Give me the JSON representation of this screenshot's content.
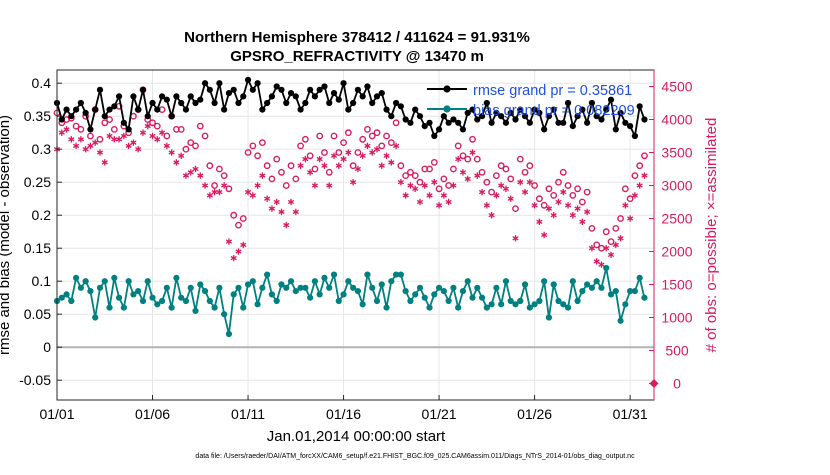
{
  "chart_data": {
    "type": "line",
    "title": "Northern Hemisphere 378412 / 411624 = 91.931%",
    "subtitle": "GPSRO_REFRACTIVITY @ 13470 m",
    "xlabel": "Jan.01,2014 00:00:00 start",
    "ylabel_left": "rmse and bias (model - observation)",
    "ylabel_right": "# of obs: o=possible; ×=assimilated",
    "footer": "data file: /Users/raeder/DAI/ATM_forcXX/CAM6_setup/f.e21.FHIST_BGC.f09_025.CAM6assim.011/Diags_NTrS_2014-01/obs_diag_output.nc",
    "x_tick_labels": [
      "01/01",
      "01/06",
      "01/11",
      "01/16",
      "01/21",
      "01/26",
      "01/31"
    ],
    "x_tick_values": [
      1,
      6,
      11,
      16,
      21,
      26,
      31
    ],
    "xlim": [
      1,
      32.25
    ],
    "ylim_left": [
      -0.08,
      0.42
    ],
    "y_left_tick_labels": [
      "-0.05",
      "0",
      "0.05",
      "0.1",
      "0.15",
      "0.2",
      "0.25",
      "0.3",
      "0.35",
      "0.4"
    ],
    "y_left_tick_values": [
      -0.05,
      0,
      0.05,
      0.1,
      0.15,
      0.2,
      0.25,
      0.3,
      0.35,
      0.4
    ],
    "ylim_right": [
      -250,
      4750
    ],
    "y_right_tick_labels": [
      "0",
      "500",
      "1000",
      "1500",
      "2000",
      "2500",
      "3000",
      "3500",
      "4000",
      "4500"
    ],
    "y_right_tick_values": [
      0,
      500,
      1000,
      1500,
      2000,
      2500,
      3000,
      3500,
      4000,
      4500
    ],
    "grid": true,
    "legend": {
      "placement": "top-right",
      "entries": [
        "rmse grand pr = 0.35861",
        "bias grand pr = 0.082209"
      ]
    },
    "colors": {
      "rmse": "#000000",
      "bias": "#008080",
      "obs": "#d81b60",
      "legend_text": "#1f4fe0",
      "zero_line": "#b3b3b3",
      "grid": "#e6e6e6"
    },
    "x": [
      1.0,
      1.25,
      1.5,
      1.75,
      2.0,
      2.25,
      2.5,
      2.75,
      3.0,
      3.25,
      3.5,
      3.75,
      4.0,
      4.25,
      4.5,
      4.75,
      5.0,
      5.25,
      5.5,
      5.75,
      6.0,
      6.25,
      6.5,
      6.75,
      7.0,
      7.25,
      7.5,
      7.75,
      8.0,
      8.25,
      8.5,
      8.75,
      9.0,
      9.25,
      9.5,
      9.75,
      10.0,
      10.25,
      10.5,
      10.75,
      11.0,
      11.25,
      11.5,
      11.75,
      12.0,
      12.25,
      12.5,
      12.75,
      13.0,
      13.25,
      13.5,
      13.75,
      14.0,
      14.25,
      14.5,
      14.75,
      15.0,
      15.25,
      15.5,
      15.75,
      16.0,
      16.25,
      16.5,
      16.75,
      17.0,
      17.25,
      17.5,
      17.75,
      18.0,
      18.25,
      18.5,
      18.75,
      19.0,
      19.25,
      19.5,
      19.75,
      20.0,
      20.25,
      20.5,
      20.75,
      21.0,
      21.25,
      21.5,
      21.75,
      22.0,
      22.25,
      22.5,
      22.75,
      23.0,
      23.25,
      23.5,
      23.75,
      24.0,
      24.25,
      24.5,
      24.75,
      25.0,
      25.25,
      25.5,
      25.75,
      26.0,
      26.25,
      26.5,
      26.75,
      27.0,
      27.25,
      27.5,
      27.75,
      28.0,
      28.25,
      28.5,
      28.75,
      29.0,
      29.25,
      29.5,
      29.75,
      30.0,
      30.25,
      30.5,
      30.75,
      31.0,
      31.25,
      31.5,
      31.75
    ],
    "series": [
      {
        "name": "rmse",
        "axis": "left",
        "marker": "filled-circle-line",
        "values": [
          0.37,
          0.345,
          0.36,
          0.35,
          0.36,
          0.37,
          0.355,
          0.33,
          0.36,
          0.39,
          0.35,
          0.36,
          0.365,
          0.38,
          0.34,
          0.33,
          0.38,
          0.36,
          0.39,
          0.35,
          0.37,
          0.36,
          0.38,
          0.375,
          0.35,
          0.38,
          0.37,
          0.36,
          0.38,
          0.37,
          0.375,
          0.4,
          0.39,
          0.37,
          0.4,
          0.36,
          0.385,
          0.39,
          0.37,
          0.38,
          0.405,
          0.39,
          0.4,
          0.36,
          0.37,
          0.38,
          0.395,
          0.39,
          0.37,
          0.385,
          0.38,
          0.36,
          0.37,
          0.39,
          0.38,
          0.39,
          0.395,
          0.37,
          0.385,
          0.375,
          0.4,
          0.36,
          0.37,
          0.39,
          0.38,
          0.395,
          0.37,
          0.38,
          0.385,
          0.36,
          0.35,
          0.37,
          0.365,
          0.345,
          0.34,
          0.36,
          0.35,
          0.335,
          0.34,
          0.32,
          0.33,
          0.35,
          0.34,
          0.345,
          0.34,
          0.33,
          0.355,
          0.36,
          0.345,
          0.35,
          0.37,
          0.34,
          0.355,
          0.35,
          0.34,
          0.355,
          0.345,
          0.36,
          0.35,
          0.34,
          0.36,
          0.355,
          0.33,
          0.35,
          0.36,
          0.34,
          0.34,
          0.37,
          0.335,
          0.35,
          0.36,
          0.34,
          0.37,
          0.35,
          0.345,
          0.36,
          0.375,
          0.33,
          0.355,
          0.34,
          0.335,
          0.32,
          0.365,
          0.345
        ]
      },
      {
        "name": "bias",
        "axis": "left",
        "marker": "filled-circle-line",
        "values": [
          0.07,
          0.075,
          0.08,
          0.07,
          0.105,
          0.09,
          0.1,
          0.085,
          0.045,
          0.09,
          0.1,
          0.06,
          0.105,
          0.075,
          0.06,
          0.1,
          0.08,
          0.085,
          0.07,
          0.1,
          0.075,
          0.065,
          0.07,
          0.09,
          0.06,
          0.105,
          0.075,
          0.07,
          0.09,
          0.055,
          0.095,
          0.085,
          0.07,
          0.06,
          0.09,
          0.05,
          0.02,
          0.08,
          0.09,
          0.06,
          0.095,
          0.1,
          0.065,
          0.09,
          0.11,
          0.08,
          0.07,
          0.095,
          0.09,
          0.1,
          0.085,
          0.09,
          0.09,
          0.075,
          0.1,
          0.08,
          0.105,
          0.09,
          0.11,
          0.07,
          0.08,
          0.1,
          0.09,
          0.085,
          0.065,
          0.11,
          0.09,
          0.07,
          0.095,
          0.06,
          0.1,
          0.11,
          0.11,
          0.085,
          0.07,
          0.08,
          0.09,
          0.075,
          0.06,
          0.08,
          0.09,
          0.085,
          0.07,
          0.09,
          0.06,
          0.085,
          0.1,
          0.075,
          0.09,
          0.075,
          0.06,
          0.065,
          0.09,
          0.065,
          0.1,
          0.07,
          0.065,
          0.07,
          0.095,
          0.06,
          0.065,
          0.07,
          0.1,
          0.045,
          0.095,
          0.07,
          0.065,
          0.06,
          0.1,
          0.07,
          0.085,
          0.095,
          0.09,
          0.1,
          0.09,
          0.12,
          0.08,
          0.085,
          0.04,
          0.065,
          0.085,
          0.085,
          0.105,
          0.075
        ]
      },
      {
        "name": "possible",
        "axis": "right",
        "marker": "open-circle",
        "values": [
          4100,
          3950,
          4000,
          4020,
          3900,
          3850,
          4050,
          3750,
          4150,
          3700,
          3950,
          4000,
          3850,
          4200,
          3900,
          3800,
          4050,
          4150,
          4450,
          4000,
          3950,
          3900,
          4150,
          3750,
          4050,
          3850,
          3850,
          3550,
          3650,
          3600,
          3900,
          3750,
          3300,
          3000,
          3250,
          3150,
          2950,
          2550,
          2400,
          2500,
          3500,
          3600,
          3450,
          3650,
          3300,
          3100,
          3400,
          3200,
          3000,
          3300,
          3100,
          3600,
          3700,
          3450,
          3250,
          3750,
          3500,
          3200,
          3750,
          3500,
          3650,
          3800,
          3300,
          3500,
          3700,
          3850,
          3750,
          3800,
          3600,
          3750,
          3650,
          3950,
          3300,
          3150,
          3200,
          3150,
          3050,
          3250,
          3250,
          3350,
          2950,
          3100,
          3000,
          3250,
          3600,
          3450,
          3400,
          3700,
          3400,
          3200,
          3050,
          2900,
          3150,
          3300,
          3250,
          3100,
          2650,
          3400,
          3200,
          3300,
          3000,
          2800,
          2700,
          2950,
          2850,
          3050,
          3200,
          3000,
          2850,
          2950,
          2750,
          2900,
          2350,
          2100,
          2050,
          2300,
          2150,
          2350,
          2500,
          2950,
          2800,
          3150,
          3300,
          3450
        ]
      },
      {
        "name": "assimilated",
        "axis": "right",
        "marker": "asterisk",
        "values": [
          3550,
          3800,
          3850,
          3700,
          3600,
          3700,
          3550,
          3600,
          3650,
          3500,
          3350,
          3750,
          3700,
          3700,
          3750,
          3600,
          3650,
          3550,
          3800,
          3900,
          3750,
          3700,
          3800,
          3600,
          3500,
          3350,
          3450,
          3150,
          3200,
          3250,
          3150,
          3000,
          2850,
          2900,
          2900,
          3000,
          2150,
          1900,
          2000,
          2100,
          2900,
          2850,
          3000,
          3150,
          2800,
          2650,
          2750,
          2600,
          2400,
          2750,
          2600,
          3300,
          3400,
          3200,
          3000,
          3400,
          3300,
          3000,
          3450,
          3300,
          3400,
          3500,
          3050,
          3250,
          3450,
          3600,
          3500,
          3550,
          3300,
          3450,
          3350,
          3600,
          3050,
          2850,
          3000,
          2950,
          2750,
          3000,
          2850,
          3050,
          2700,
          2850,
          2750,
          3000,
          3400,
          3200,
          3100,
          3500,
          3150,
          2900,
          2700,
          2550,
          2850,
          3000,
          2950,
          2800,
          2200,
          3050,
          2900,
          3050,
          2700,
          2450,
          2250,
          2650,
          2550,
          2750,
          2900,
          2700,
          2550,
          2650,
          2450,
          2600,
          2050,
          1850,
          1800,
          2050,
          1950,
          2100,
          2200,
          2700,
          2500,
          2850,
          3000,
          3150
        ]
      }
    ],
    "annotations": [
      {
        "name": "obs-zero-marker",
        "x": 32.25,
        "axis": "right",
        "y": 0,
        "marker": "filled-diamond"
      }
    ]
  }
}
